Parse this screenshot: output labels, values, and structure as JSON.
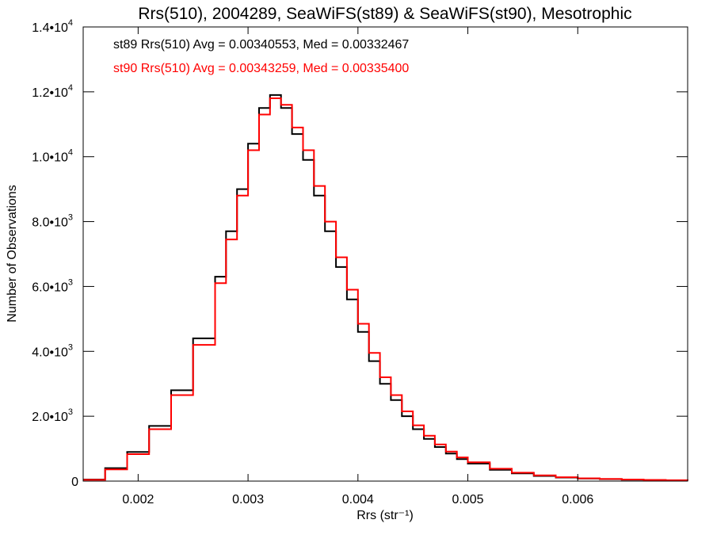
{
  "chart_data": {
    "type": "line",
    "title": "Rrs(510), 2004289, SeaWiFS(st89) & SeaWiFS(st90), Mesotrophic",
    "xlabel": "Rrs (str⁻¹)",
    "ylabel": "Number of Observations",
    "xlim": [
      0.0015,
      0.007
    ],
    "ylim": [
      0,
      14000
    ],
    "x_ticks": [
      {
        "value": 0.002,
        "label": "0.002"
      },
      {
        "value": 0.003,
        "label": "0.003"
      },
      {
        "value": 0.004,
        "label": "0.004"
      },
      {
        "value": 0.005,
        "label": "0.005"
      },
      {
        "value": 0.006,
        "label": "0.006"
      }
    ],
    "y_ticks": [
      {
        "value": 0,
        "mantissa": "0",
        "exponent": ""
      },
      {
        "value": 2000,
        "mantissa": "2.0•10",
        "exponent": "3"
      },
      {
        "value": 4000,
        "mantissa": "4.0•10",
        "exponent": "3"
      },
      {
        "value": 6000,
        "mantissa": "6.0•10",
        "exponent": "3"
      },
      {
        "value": 8000,
        "mantissa": "8.0•10",
        "exponent": "3"
      },
      {
        "value": 10000,
        "mantissa": "1.0•10",
        "exponent": "4"
      },
      {
        "value": 12000,
        "mantissa": "1.2•10",
        "exponent": "4"
      },
      {
        "value": 14000,
        "mantissa": "1.4•10",
        "exponent": "4"
      }
    ],
    "annotations": [
      {
        "text": "st89 Rrs(510) Avg = 0.00340553, Med = 0.00332467",
        "color": "#000000"
      },
      {
        "text": "st90 Rrs(510) Avg = 0.00343259, Med = 0.00335400",
        "color": "#ff0000"
      }
    ],
    "series": [
      {
        "color": "#000000",
        "step": true,
        "x": [
          0.0015,
          0.0017,
          0.0019,
          0.0021,
          0.0023,
          0.0025,
          0.0027,
          0.0028,
          0.0029,
          0.003,
          0.0031,
          0.0032,
          0.0033,
          0.0034,
          0.0035,
          0.0036,
          0.0037,
          0.0038,
          0.0039,
          0.004,
          0.0041,
          0.0042,
          0.0043,
          0.0044,
          0.0045,
          0.0046,
          0.0047,
          0.0048,
          0.0049,
          0.005,
          0.0052,
          0.0054,
          0.0056,
          0.0058,
          0.006,
          0.0062,
          0.0064,
          0.0066,
          0.0068,
          0.007
        ],
        "y": [
          50,
          400,
          900,
          1700,
          2800,
          4400,
          6300,
          7700,
          9000,
          10400,
          11500,
          11900,
          11500,
          10700,
          9900,
          8800,
          7700,
          6600,
          5600,
          4600,
          3700,
          3000,
          2500,
          2000,
          1600,
          1300,
          1050,
          850,
          680,
          540,
          350,
          240,
          160,
          110,
          80,
          60,
          45,
          35,
          25,
          20
        ]
      },
      {
        "color": "#ff0000",
        "step": true,
        "x": [
          0.0015,
          0.0017,
          0.0019,
          0.0021,
          0.0023,
          0.0025,
          0.0027,
          0.0028,
          0.0029,
          0.003,
          0.0031,
          0.0032,
          0.0033,
          0.0034,
          0.0035,
          0.0036,
          0.0037,
          0.0038,
          0.0039,
          0.004,
          0.0041,
          0.0042,
          0.0043,
          0.0044,
          0.0045,
          0.0046,
          0.0047,
          0.0048,
          0.0049,
          0.005,
          0.0052,
          0.0054,
          0.0056,
          0.0058,
          0.006,
          0.0062,
          0.0064,
          0.0066,
          0.0068,
          0.007
        ],
        "y": [
          40,
          360,
          830,
          1600,
          2650,
          4200,
          6100,
          7450,
          8800,
          10200,
          11300,
          11800,
          11600,
          10900,
          10200,
          9100,
          8000,
          6900,
          5900,
          4850,
          3950,
          3200,
          2650,
          2150,
          1720,
          1400,
          1130,
          910,
          730,
          580,
          380,
          260,
          175,
          120,
          85,
          65,
          48,
          36,
          28,
          20
        ]
      }
    ]
  }
}
